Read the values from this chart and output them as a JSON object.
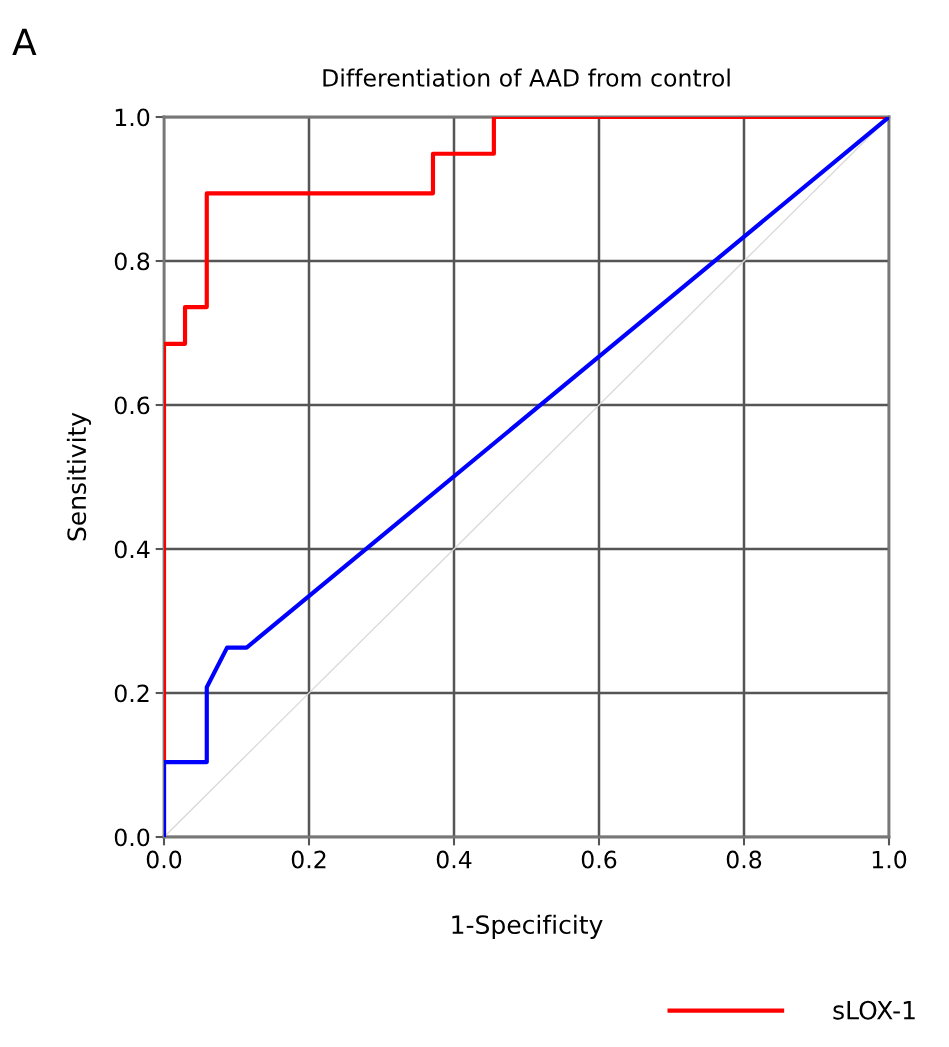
{
  "chart_data": {
    "type": "line",
    "title": "Differentiation of AAD from control",
    "xlabel": "1-Specificity",
    "ylabel": "Sensitivity",
    "annotations": [
      "A"
    ],
    "series": [
      {
        "name": "sLOX-1",
        "color": "#ff0000",
        "x": [
          0,
          0,
          0.029,
          0.029,
          0.059,
          0.059,
          0.371,
          0.371,
          0.455,
          0.455,
          1
        ],
        "values": [
          0,
          0.685,
          0.685,
          0.736,
          0.736,
          0.894,
          0.894,
          0.949,
          0.949,
          1,
          1
        ]
      },
      {
        "color": "#0000ff",
        "x": [
          0,
          0,
          0.059,
          0.059,
          0.087,
          0.114,
          1
        ],
        "values": [
          0,
          0.104,
          0.104,
          0.208,
          0.263,
          0.263,
          1
        ]
      },
      {
        "color": "#d9d9d9",
        "x": [
          0,
          1
        ],
        "values": [
          0,
          1
        ]
      }
    ],
    "xlim": [
      0,
      1
    ],
    "ylim": [
      0,
      1
    ],
    "xticks": [
      {
        "value": 0,
        "label": "0.0"
      },
      {
        "value": 0.2,
        "label": "0.2"
      },
      {
        "value": 0.4,
        "label": "0.4"
      },
      {
        "value": 0.6,
        "label": "0.6"
      },
      {
        "value": 0.8,
        "label": "0.8"
      },
      {
        "value": 1,
        "label": "1.0"
      }
    ],
    "yticks": [
      {
        "value": 0,
        "label": "0.0"
      },
      {
        "value": 0.2,
        "label": "0.2"
      },
      {
        "value": 0.4,
        "label": "0.4"
      },
      {
        "value": 0.6,
        "label": "0.6"
      },
      {
        "value": 0.8,
        "label": "0.8"
      },
      {
        "value": 1,
        "label": "1.0"
      }
    ],
    "grid": true,
    "legend": "bottom right",
    "line_style": "solid",
    "marker": "none"
  }
}
